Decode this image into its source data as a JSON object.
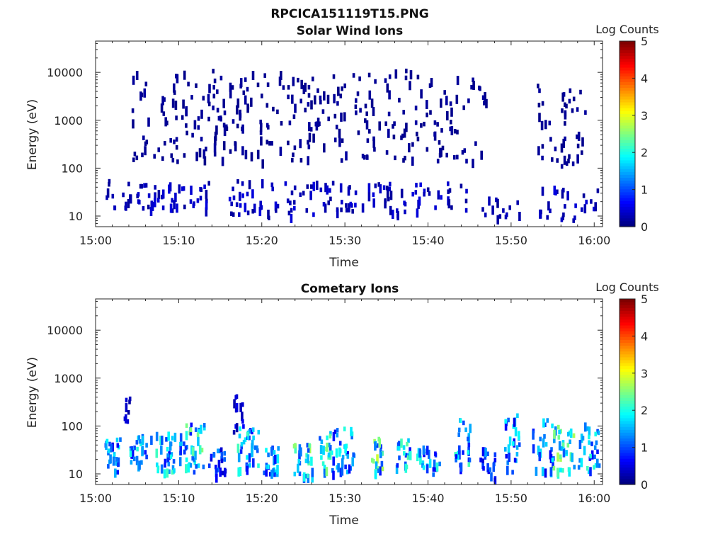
{
  "figure": {
    "title": "RPCICA151119T15.PNG",
    "colorbar_label": "Log Counts",
    "colorbar_ticks": [
      "0",
      "1",
      "2",
      "3",
      "4",
      "5"
    ],
    "xtick_labels": [
      "15:00",
      "15:10",
      "15:20",
      "15:30",
      "15:40",
      "15:50",
      "16:00"
    ],
    "ytick_labels": [
      "10",
      "100",
      "1000",
      "10000"
    ]
  },
  "chart_data": [
    {
      "type": "heatmap",
      "title": "Solar Wind Ions",
      "xlabel": "Time",
      "ylabel": "Energy (eV)",
      "xlim": [
        "15:00",
        "16:01"
      ],
      "ylim": [
        6,
        45000
      ],
      "yscale": "log",
      "colorbar": {
        "label": "Log Counts",
        "range": [
          0,
          5
        ]
      },
      "clusters": [
        {
          "t_start": 1.0,
          "t_end": 4.5,
          "e_low": 15,
          "e_high": 60,
          "n": 14,
          "level": 0.2
        },
        {
          "t_start": 4.8,
          "t_end": 8.0,
          "e_low": 15,
          "e_high": 50,
          "n": 22,
          "level": 0.3
        },
        {
          "t_start": 8.3,
          "t_end": 13.5,
          "e_low": 12,
          "e_high": 60,
          "n": 26,
          "level": 0.3
        },
        {
          "t_start": 16.0,
          "t_end": 20.0,
          "e_low": 12,
          "e_high": 60,
          "n": 24,
          "level": 0.3
        },
        {
          "t_start": 20.5,
          "t_end": 26.5,
          "e_low": 10,
          "e_high": 55,
          "n": 26,
          "level": 0.3
        },
        {
          "t_start": 26.8,
          "t_end": 31.5,
          "e_low": 12,
          "e_high": 55,
          "n": 24,
          "level": 0.3
        },
        {
          "t_start": 32.0,
          "t_end": 37.5,
          "e_low": 10,
          "e_high": 55,
          "n": 26,
          "level": 0.3
        },
        {
          "t_start": 38.0,
          "t_end": 44.5,
          "e_low": 12,
          "e_high": 55,
          "n": 24,
          "level": 0.3
        },
        {
          "t_start": 46.0,
          "t_end": 51.0,
          "e_low": 8,
          "e_high": 50,
          "n": 14,
          "level": 0.2
        },
        {
          "t_start": 53.0,
          "t_end": 60.5,
          "e_low": 8,
          "e_high": 55,
          "n": 28,
          "level": 0.3
        },
        {
          "t_start": 4.0,
          "t_end": 47.0,
          "e_low": 150,
          "e_high": 12000,
          "n": 320,
          "level": 0.1
        },
        {
          "t_start": 53.0,
          "t_end": 59.0,
          "e_low": 120,
          "e_high": 6000,
          "n": 45,
          "level": 0.1
        }
      ]
    },
    {
      "type": "heatmap",
      "title": "Cometary Ions",
      "xlabel": "Time",
      "ylabel": "Energy (eV)",
      "xlim": [
        "15:00",
        "16:01"
      ],
      "ylim": [
        6,
        45000
      ],
      "yscale": "log",
      "colorbar": {
        "label": "Log Counts",
        "range": [
          0,
          5
        ]
      },
      "clusters": [
        {
          "t_start": 1.0,
          "t_end": 3.0,
          "e_low": 12,
          "e_high": 60,
          "n": 26,
          "level": 1.2
        },
        {
          "t_start": 3.2,
          "t_end": 4.0,
          "e_low": 100,
          "e_high": 500,
          "n": 8,
          "level": 0.3
        },
        {
          "t_start": 4.0,
          "t_end": 6.0,
          "e_low": 15,
          "e_high": 70,
          "n": 26,
          "level": 1.3
        },
        {
          "t_start": 6.5,
          "t_end": 9.5,
          "e_low": 12,
          "e_high": 80,
          "n": 34,
          "level": 1.4
        },
        {
          "t_start": 10.0,
          "t_end": 13.0,
          "e_low": 12,
          "e_high": 120,
          "n": 44,
          "level": 1.6
        },
        {
          "t_start": 13.5,
          "t_end": 15.5,
          "e_low": 10,
          "e_high": 40,
          "n": 24,
          "level": 0.9
        },
        {
          "t_start": 16.5,
          "t_end": 17.8,
          "e_low": 80,
          "e_high": 600,
          "n": 14,
          "level": 0.5
        },
        {
          "t_start": 17.0,
          "t_end": 19.5,
          "e_low": 12,
          "e_high": 100,
          "n": 36,
          "level": 1.4
        },
        {
          "t_start": 20.0,
          "t_end": 22.0,
          "e_low": 10,
          "e_high": 40,
          "n": 24,
          "level": 1.2
        },
        {
          "t_start": 23.5,
          "t_end": 26.0,
          "e_low": 10,
          "e_high": 45,
          "n": 28,
          "level": 1.7
        },
        {
          "t_start": 26.8,
          "t_end": 28.5,
          "e_low": 10,
          "e_high": 80,
          "n": 24,
          "level": 1.6
        },
        {
          "t_start": 28.5,
          "t_end": 31.0,
          "e_low": 12,
          "e_high": 100,
          "n": 32,
          "level": 1.3
        },
        {
          "t_start": 33.0,
          "t_end": 34.5,
          "e_low": 12,
          "e_high": 60,
          "n": 22,
          "level": 1.8
        },
        {
          "t_start": 36.0,
          "t_end": 38.0,
          "e_low": 15,
          "e_high": 60,
          "n": 24,
          "level": 1.5
        },
        {
          "t_start": 38.5,
          "t_end": 41.5,
          "e_low": 10,
          "e_high": 45,
          "n": 26,
          "level": 1.3
        },
        {
          "t_start": 43.0,
          "t_end": 45.0,
          "e_low": 15,
          "e_high": 150,
          "n": 26,
          "level": 1.4
        },
        {
          "t_start": 46.0,
          "t_end": 48.0,
          "e_low": 8,
          "e_high": 40,
          "n": 20,
          "level": 0.9
        },
        {
          "t_start": 49.0,
          "t_end": 51.0,
          "e_low": 12,
          "e_high": 200,
          "n": 26,
          "level": 1.2
        },
        {
          "t_start": 52.5,
          "t_end": 55.0,
          "e_low": 12,
          "e_high": 150,
          "n": 26,
          "level": 1.2
        },
        {
          "t_start": 55.0,
          "t_end": 57.5,
          "e_low": 12,
          "e_high": 120,
          "n": 34,
          "level": 1.7
        },
        {
          "t_start": 58.0,
          "t_end": 60.5,
          "e_low": 12,
          "e_high": 120,
          "n": 30,
          "level": 1.4
        }
      ]
    }
  ]
}
